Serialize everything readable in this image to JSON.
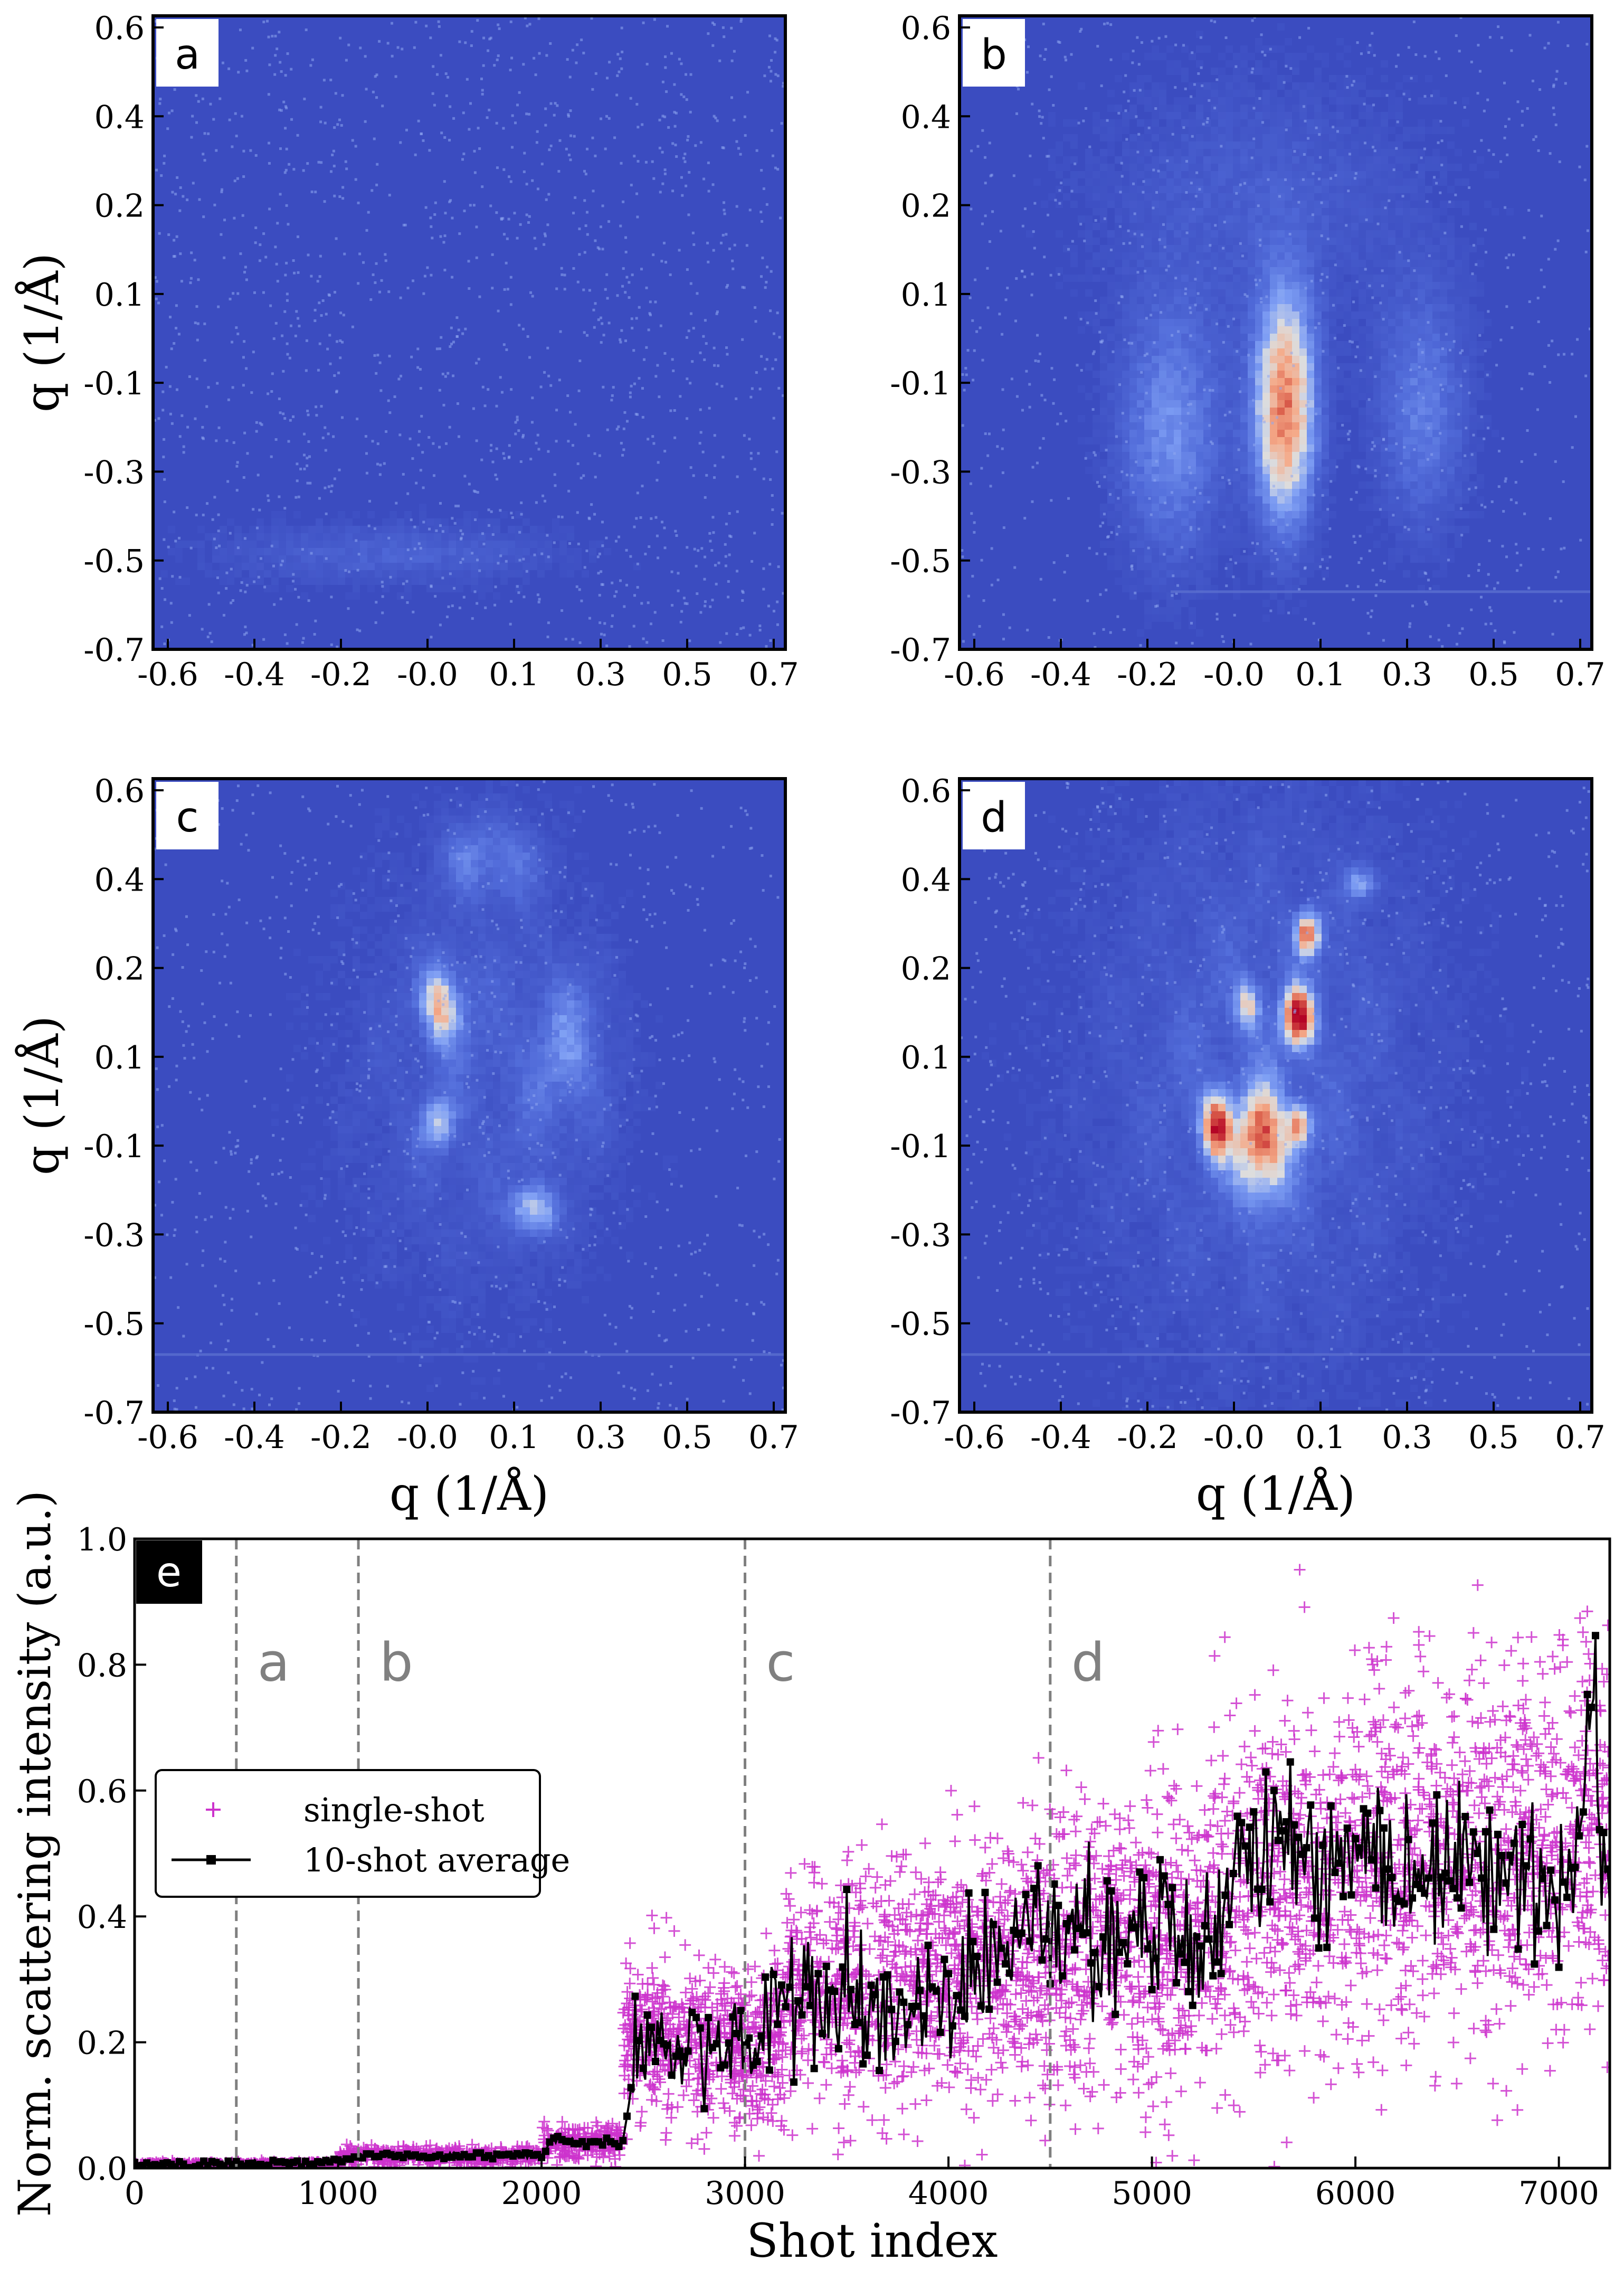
{
  "chart_data": [
    {
      "type": "heatmap",
      "panel_label": "a",
      "xlabel": "",
      "ylabel": "q (1/Å)",
      "x_ticks": [
        "-0.6",
        "-0.4",
        "-0.2",
        "-0.0",
        "0.1",
        "0.3",
        "0.5",
        "0.7"
      ],
      "y_ticks": [
        "0.6",
        "0.4",
        "0.2",
        "0.1",
        "-0.1",
        "-0.3",
        "-0.5",
        "-0.7"
      ],
      "colormap": "coolwarm",
      "description_values": {
        "background": "#3b4cc0",
        "max_intensity": 0.15
      },
      "blobs": [
        {
          "qx": -0.15,
          "qy": -0.5,
          "rx": 0.45,
          "ry": 0.08,
          "intensity": 0.15
        }
      ]
    },
    {
      "type": "heatmap",
      "panel_label": "b",
      "xlabel": "",
      "ylabel": "",
      "x_ticks": [
        "-0.6",
        "-0.4",
        "-0.2",
        "-0.0",
        "0.1",
        "0.3",
        "0.5",
        "0.7"
      ],
      "y_ticks": [
        "0.6",
        "0.4",
        "0.2",
        "0.1",
        "-0.1",
        "-0.3",
        "-0.5",
        "-0.7"
      ],
      "colormap": "coolwarm",
      "blobs": [
        {
          "qx": 0.05,
          "qy": -0.2,
          "rx": 0.08,
          "ry": 0.28,
          "intensity": 0.75
        },
        {
          "qx": -0.2,
          "qy": -0.25,
          "rx": 0.14,
          "ry": 0.32,
          "intensity": 0.3
        },
        {
          "qx": 0.35,
          "qy": -0.2,
          "rx": 0.12,
          "ry": 0.3,
          "intensity": 0.25
        },
        {
          "qx": 0.0,
          "qy": 0.25,
          "rx": 0.45,
          "ry": 0.3,
          "intensity": 0.12
        }
      ]
    },
    {
      "type": "heatmap",
      "panel_label": "c",
      "xlabel": "q (1/Å)",
      "ylabel": "q (1/Å)",
      "x_ticks": [
        "-0.6",
        "-0.4",
        "-0.2",
        "-0.0",
        "0.1",
        "0.3",
        "0.5",
        "0.7"
      ],
      "y_ticks": [
        "0.6",
        "0.4",
        "0.2",
        "0.1",
        "-0.1",
        "-0.3",
        "-0.5",
        "-0.7"
      ],
      "colormap": "coolwarm",
      "blobs": [
        {
          "qx": -0.03,
          "qy": 0.15,
          "rx": 0.05,
          "ry": 0.09,
          "intensity": 0.72
        },
        {
          "qx": -0.04,
          "qy": -0.1,
          "rx": 0.04,
          "ry": 0.06,
          "intensity": 0.45
        },
        {
          "qx": 0.17,
          "qy": -0.28,
          "rx": 0.05,
          "ry": 0.06,
          "intensity": 0.72
        },
        {
          "qx": 0.05,
          "qy": 0.0,
          "rx": 0.35,
          "ry": 0.55,
          "intensity": 0.18
        },
        {
          "qx": 0.08,
          "qy": 0.45,
          "rx": 0.12,
          "ry": 0.1,
          "intensity": 0.3
        },
        {
          "qx": 0.25,
          "qy": 0.05,
          "rx": 0.1,
          "ry": 0.2,
          "intensity": 0.25
        }
      ]
    },
    {
      "type": "heatmap",
      "panel_label": "d",
      "xlabel": "q (1/Å)",
      "ylabel": "",
      "x_ticks": [
        "-0.6",
        "-0.4",
        "-0.2",
        "-0.0",
        "0.1",
        "0.3",
        "0.5",
        "0.7"
      ],
      "y_ticks": [
        "0.6",
        "0.4",
        "0.2",
        "0.1",
        "-0.1",
        "-0.3",
        "-0.5",
        "-0.7"
      ],
      "colormap": "coolwarm",
      "blobs": [
        {
          "qx": 0.0,
          "qy": -0.15,
          "rx": 0.06,
          "ry": 0.13,
          "intensity": 1.0
        },
        {
          "qx": -0.1,
          "qy": -0.1,
          "rx": 0.04,
          "ry": 0.08,
          "intensity": 0.95
        },
        {
          "qx": 0.08,
          "qy": 0.12,
          "rx": 0.04,
          "ry": 0.07,
          "intensity": 1.0
        },
        {
          "qx": 0.1,
          "qy": 0.3,
          "rx": 0.03,
          "ry": 0.05,
          "intensity": 0.95
        },
        {
          "qx": 0.08,
          "qy": -0.1,
          "rx": 0.03,
          "ry": 0.05,
          "intensity": 0.85
        },
        {
          "qx": -0.03,
          "qy": 0.15,
          "rx": 0.03,
          "ry": 0.06,
          "intensity": 0.6
        },
        {
          "qx": 0.22,
          "qy": 0.4,
          "rx": 0.04,
          "ry": 0.04,
          "intensity": 0.45
        },
        {
          "qx": 0.0,
          "qy": 0.0,
          "rx": 0.45,
          "ry": 0.7,
          "intensity": 0.22
        }
      ]
    },
    {
      "type": "scatter",
      "panel_label": "e",
      "xlabel": "Shot index",
      "ylabel": "Norm. scattering intensity (a.u.)",
      "xlim": [
        0,
        7250
      ],
      "ylim": [
        0,
        1.0
      ],
      "x_ticks": [
        0,
        1000,
        2000,
        3000,
        4000,
        5000,
        6000,
        7000
      ],
      "y_ticks": [
        "0.0",
        "0.2",
        "0.4",
        "0.6",
        "0.8",
        "1.0"
      ],
      "grid": false,
      "legend_placement": "center-left",
      "regions": [
        {
          "label": "a",
          "x": 500
        },
        {
          "label": "b",
          "x": 1100
        },
        {
          "label": "c",
          "x": 3000
        },
        {
          "label": "d",
          "x": 4500
        }
      ],
      "series": [
        {
          "name": "single-shot",
          "marker": "+",
          "color": "#cc33cc",
          "segments": [
            {
              "x0": 0,
              "x1": 1000,
              "mean": 0.005,
              "spread": 0.004
            },
            {
              "x0": 1000,
              "x1": 2000,
              "mean": 0.02,
              "spread": 0.012
            },
            {
              "x0": 2000,
              "x1": 2400,
              "mean": 0.04,
              "spread": 0.025
            },
            {
              "x0": 2400,
              "x1": 3200,
              "mean": 0.2,
              "spread": 0.12
            },
            {
              "x0": 3200,
              "x1": 4400,
              "mean": 0.3,
              "spread": 0.17
            },
            {
              "x0": 4400,
              "x1": 5300,
              "mean": 0.37,
              "spread": 0.22
            },
            {
              "x0": 5300,
              "x1": 7250,
              "mean": 0.48,
              "spread": 0.27
            }
          ]
        },
        {
          "name": "10-shot average",
          "marker": "s",
          "color": "#000000",
          "x": [
            0,
            500,
            1000,
            1100,
            1500,
            2000,
            2050,
            2400,
            2450,
            2500,
            2800,
            3100,
            3200,
            3500,
            3800,
            4000,
            4200,
            4400,
            4500,
            4800,
            5000,
            5200,
            5300,
            5400,
            5600,
            5800,
            6000,
            6200,
            6400,
            6600,
            6800,
            7000,
            7100,
            7150,
            7250
          ],
          "y": [
            0.005,
            0.005,
            0.01,
            0.02,
            0.02,
            0.02,
            0.045,
            0.04,
            0.15,
            0.2,
            0.19,
            0.21,
            0.3,
            0.27,
            0.24,
            0.28,
            0.33,
            0.4,
            0.38,
            0.36,
            0.38,
            0.36,
            0.34,
            0.48,
            0.52,
            0.47,
            0.5,
            0.49,
            0.46,
            0.47,
            0.45,
            0.44,
            0.48,
            0.76,
            0.42
          ]
        }
      ]
    }
  ]
}
